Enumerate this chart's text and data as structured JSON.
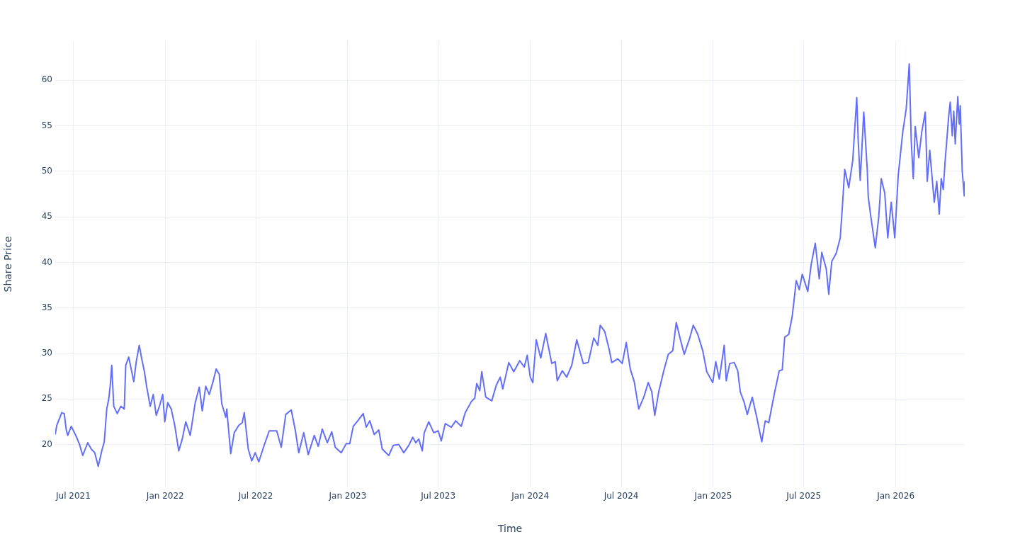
{
  "chart_data": {
    "type": "line",
    "xlabel": "Time",
    "ylabel": "Share Price",
    "grid": true,
    "legend": false,
    "marker": "none",
    "line_style": "solid",
    "xlim": [
      "2021-05-26",
      "2026-05-19"
    ],
    "ylim": [
      15.3,
      64.3
    ],
    "xticks": [
      {
        "value": "2021-07-01",
        "label": "Jul 2021"
      },
      {
        "value": "2022-01-01",
        "label": "Jan 2022"
      },
      {
        "value": "2022-07-01",
        "label": "Jul 2022"
      },
      {
        "value": "2023-01-01",
        "label": "Jan 2023"
      },
      {
        "value": "2023-07-01",
        "label": "Jul 2023"
      },
      {
        "value": "2024-01-01",
        "label": "Jan 2024"
      },
      {
        "value": "2024-07-01",
        "label": "Jul 2024"
      },
      {
        "value": "2025-01-01",
        "label": "Jan 2025"
      },
      {
        "value": "2025-07-01",
        "label": "Jul 2025"
      },
      {
        "value": "2026-01-01",
        "label": "Jan 2026"
      }
    ],
    "yticks": [
      20,
      25,
      30,
      35,
      40,
      45,
      50,
      55,
      60
    ],
    "series": [
      {
        "color": "#636efa",
        "x": [
          "2021-05-26",
          "2021-05-29",
          "2021-06-08",
          "2021-06-13",
          "2021-06-17",
          "2021-06-20",
          "2021-06-27",
          "2021-07-06",
          "2021-07-13",
          "2021-07-20",
          "2021-07-30",
          "2021-08-06",
          "2021-08-13",
          "2021-08-20",
          "2021-08-27",
          "2021-09-01",
          "2021-09-06",
          "2021-09-10",
          "2021-09-13",
          "2021-09-16",
          "2021-09-20",
          "2021-09-27",
          "2021-10-04",
          "2021-10-11",
          "2021-10-14",
          "2021-10-20",
          "2021-10-30",
          "2021-11-04",
          "2021-11-10",
          "2021-11-15",
          "2021-11-20",
          "2021-11-25",
          "2021-12-02",
          "2021-12-08",
          "2021-12-14",
          "2021-12-21",
          "2021-12-27",
          "2021-12-31",
          "2022-01-06",
          "2022-01-13",
          "2022-01-20",
          "2022-01-28",
          "2022-02-04",
          "2022-02-11",
          "2022-02-20",
          "2022-03-02",
          "2022-03-10",
          "2022-03-16",
          "2022-03-23",
          "2022-03-30",
          "2022-04-06",
          "2022-04-13",
          "2022-04-19",
          "2022-04-24",
          "2022-05-02",
          "2022-05-04",
          "2022-05-09",
          "2022-05-12",
          "2022-05-19",
          "2022-05-28",
          "2022-06-04",
          "2022-06-08",
          "2022-06-16",
          "2022-06-23",
          "2022-06-30",
          "2022-07-07",
          "2022-07-19",
          "2022-07-28",
          "2022-08-12",
          "2022-08-21",
          "2022-08-30",
          "2022-09-10",
          "2022-09-18",
          "2022-09-25",
          "2022-10-05",
          "2022-10-14",
          "2022-10-26",
          "2022-11-03",
          "2022-11-11",
          "2022-11-21",
          "2022-11-30",
          "2022-12-07",
          "2022-12-19",
          "2022-12-29",
          "2023-01-05",
          "2023-01-12",
          "2023-01-21",
          "2023-02-01",
          "2023-02-07",
          "2023-02-14",
          "2023-02-23",
          "2023-03-04",
          "2023-03-11",
          "2023-03-24",
          "2023-04-02",
          "2023-04-13",
          "2023-04-23",
          "2023-05-03",
          "2023-05-11",
          "2023-05-17",
          "2023-05-23",
          "2023-05-30",
          "2023-06-03",
          "2023-06-12",
          "2023-06-22",
          "2023-07-01",
          "2023-07-07",
          "2023-07-15",
          "2023-07-27",
          "2023-08-05",
          "2023-08-16",
          "2023-08-24",
          "2023-09-05",
          "2023-09-12",
          "2023-09-16",
          "2023-09-22",
          "2023-09-26",
          "2023-10-04",
          "2023-10-16",
          "2023-10-25",
          "2023-11-02",
          "2023-11-07",
          "2023-11-19",
          "2023-11-29",
          "2023-12-11",
          "2023-12-20",
          "2023-12-26",
          "2024-01-01",
          "2024-01-06",
          "2024-01-13",
          "2024-01-22",
          "2024-02-01",
          "2024-02-13",
          "2024-02-20",
          "2024-02-24",
          "2024-03-05",
          "2024-03-14",
          "2024-03-24",
          "2024-04-03",
          "2024-04-16",
          "2024-04-26",
          "2024-05-07",
          "2024-05-15",
          "2024-05-20",
          "2024-05-29",
          "2024-06-07",
          "2024-06-12",
          "2024-06-24",
          "2024-07-03",
          "2024-07-11",
          "2024-07-19",
          "2024-07-27",
          "2024-08-05",
          "2024-08-15",
          "2024-08-24",
          "2024-08-31",
          "2024-09-06",
          "2024-09-14",
          "2024-09-24",
          "2024-10-03",
          "2024-10-12",
          "2024-10-19",
          "2024-10-27",
          "2024-11-04",
          "2024-11-15",
          "2024-11-22",
          "2024-12-01",
          "2024-12-11",
          "2024-12-19",
          "2024-12-31",
          "2025-01-06",
          "2025-01-13",
          "2025-01-23",
          "2025-01-27",
          "2025-02-03",
          "2025-02-12",
          "2025-02-19",
          "2025-02-24",
          "2025-03-04",
          "2025-03-10",
          "2025-03-20",
          "2025-03-29",
          "2025-04-08",
          "2025-04-15",
          "2025-04-22",
          "2025-05-04",
          "2025-05-13",
          "2025-05-19",
          "2025-05-24",
          "2025-06-01",
          "2025-06-08",
          "2025-06-16",
          "2025-06-22",
          "2025-06-28",
          "2025-07-09",
          "2025-07-16",
          "2025-07-24",
          "2025-08-01",
          "2025-08-06",
          "2025-08-15",
          "2025-08-20",
          "2025-08-26",
          "2025-09-04",
          "2025-09-12",
          "2025-09-16",
          "2025-09-21",
          "2025-09-29",
          "2025-10-07",
          "2025-10-15",
          "2025-10-18",
          "2025-10-22",
          "2025-10-29",
          "2025-11-05",
          "2025-11-07",
          "2025-11-12",
          "2025-11-21",
          "2025-11-28",
          "2025-12-03",
          "2025-12-10",
          "2025-12-16",
          "2025-12-23",
          "2025-12-30",
          "2026-01-06",
          "2026-01-15",
          "2026-01-22",
          "2026-01-28",
          "2026-02-01",
          "2026-02-05",
          "2026-02-09",
          "2026-02-16",
          "2026-02-22",
          "2026-03-01",
          "2026-03-05",
          "2026-03-10",
          "2026-03-19",
          "2026-03-24",
          "2026-03-29",
          "2026-04-02",
          "2026-04-06",
          "2026-04-10",
          "2026-04-17",
          "2026-04-20",
          "2026-04-24",
          "2026-04-27",
          "2026-04-30",
          "2026-05-05",
          "2026-05-08",
          "2026-05-10",
          "2026-05-14",
          "2026-05-18",
          "2026-05-19"
        ],
        "values": [
          21.1,
          22.1,
          23.5,
          23.4,
          21.6,
          21.0,
          22.0,
          21.0,
          20.1,
          18.8,
          20.2,
          19.5,
          19.1,
          17.6,
          19.3,
          20.3,
          23.9,
          25.0,
          26.5,
          28.7,
          24.2,
          23.4,
          24.2,
          23.9,
          28.7,
          29.6,
          26.9,
          29.1,
          30.9,
          29.4,
          28.1,
          26.3,
          24.2,
          25.5,
          23.2,
          24.3,
          25.5,
          22.5,
          24.6,
          23.9,
          22.1,
          19.3,
          20.6,
          22.5,
          21.0,
          24.6,
          26.3,
          23.7,
          26.4,
          25.5,
          26.8,
          28.3,
          27.7,
          24.5,
          23.0,
          23.9,
          20.8,
          19.0,
          21.3,
          22.1,
          22.4,
          23.5,
          19.5,
          18.2,
          19.1,
          18.1,
          20.1,
          21.5,
          21.5,
          19.7,
          23.3,
          23.8,
          21.6,
          19.1,
          21.3,
          18.9,
          21.0,
          19.8,
          21.7,
          20.2,
          21.4,
          19.7,
          19.1,
          20.1,
          20.1,
          22.0,
          22.6,
          23.4,
          21.9,
          22.6,
          21.1,
          21.6,
          19.5,
          18.8,
          19.9,
          20.0,
          19.1,
          19.9,
          20.8,
          20.2,
          20.6,
          19.3,
          21.3,
          22.5,
          21.3,
          21.5,
          20.4,
          22.3,
          21.9,
          22.6,
          22.0,
          23.5,
          24.7,
          25.1,
          26.7,
          25.9,
          28.0,
          25.2,
          24.8,
          26.5,
          27.4,
          26.1,
          29.0,
          28.0,
          29.2,
          28.5,
          29.8,
          27.4,
          26.8,
          31.5,
          29.5,
          32.2,
          28.9,
          29.1,
          27.0,
          28.1,
          27.4,
          28.7,
          31.5,
          28.9,
          29.0,
          31.7,
          30.9,
          33.1,
          32.4,
          30.4,
          29.0,
          29.4,
          28.9,
          31.2,
          28.3,
          26.9,
          23.9,
          25.2,
          26.8,
          25.8,
          23.2,
          25.8,
          28.1,
          29.9,
          30.3,
          33.4,
          31.6,
          29.9,
          31.7,
          33.1,
          32.1,
          30.3,
          28.0,
          26.8,
          29.1,
          27.2,
          30.9,
          27.0,
          28.9,
          29.0,
          28.1,
          25.8,
          24.6,
          23.3,
          25.2,
          23.0,
          20.3,
          22.6,
          22.4,
          25.8,
          28.1,
          28.2,
          31.8,
          32.1,
          34.1,
          38.0,
          37.0,
          38.7,
          36.8,
          39.8,
          42.1,
          38.2,
          41.1,
          39.3,
          36.5,
          40.1,
          41.0,
          42.7,
          45.9,
          50.2,
          48.2,
          51.2,
          58.1,
          53.3,
          49.0,
          56.5,
          50.2,
          47.2,
          45.1,
          41.6,
          45.0,
          49.2,
          47.6,
          42.7,
          46.6,
          42.7,
          49.6,
          54.3,
          56.9,
          61.8,
          53.3,
          49.2,
          54.9,
          51.5,
          54.3,
          56.5,
          48.9,
          52.3,
          46.6,
          48.9,
          45.3,
          49.2,
          48.0,
          51.3,
          56.1,
          57.6,
          53.9,
          56.6,
          53.0,
          58.2,
          55.2,
          57.2,
          50.0,
          47.3,
          48.9
        ]
      }
    ]
  }
}
